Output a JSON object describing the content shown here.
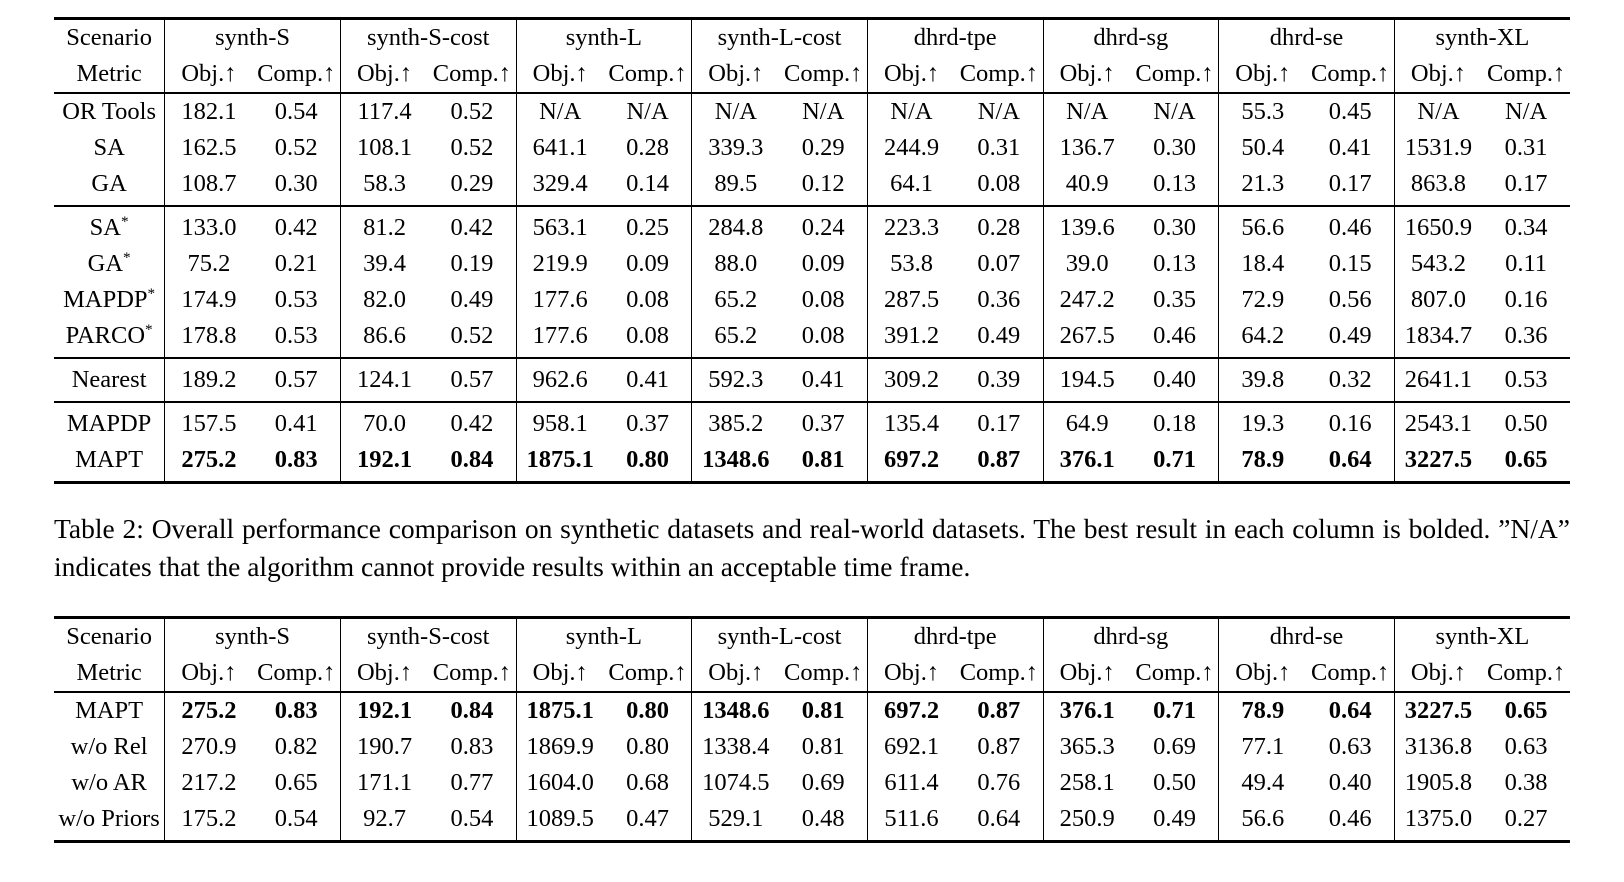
{
  "header": {
    "scenario_label": "Scenario",
    "metric_label": "Metric",
    "obj_label": "Obj.↑",
    "comp_label": "Comp.↑",
    "scenarios": [
      "synth-S",
      "synth-S-cost",
      "synth-L",
      "synth-L-cost",
      "dhrd-tpe",
      "dhrd-sg",
      "dhrd-se",
      "synth-XL"
    ]
  },
  "main_table": {
    "row_groups": [
      [
        {
          "label": "OR Tools",
          "sup": "",
          "bold": false,
          "values": [
            "182.1",
            "0.54",
            "117.4",
            "0.52",
            "N/A",
            "N/A",
            "N/A",
            "N/A",
            "N/A",
            "N/A",
            "N/A",
            "N/A",
            "55.3",
            "0.45",
            "N/A",
            "N/A"
          ]
        },
        {
          "label": "SA",
          "sup": "",
          "bold": false,
          "values": [
            "162.5",
            "0.52",
            "108.1",
            "0.52",
            "641.1",
            "0.28",
            "339.3",
            "0.29",
            "244.9",
            "0.31",
            "136.7",
            "0.30",
            "50.4",
            "0.41",
            "1531.9",
            "0.31"
          ]
        },
        {
          "label": "GA",
          "sup": "",
          "bold": false,
          "values": [
            "108.7",
            "0.30",
            "58.3",
            "0.29",
            "329.4",
            "0.14",
            "89.5",
            "0.12",
            "64.1",
            "0.08",
            "40.9",
            "0.13",
            "21.3",
            "0.17",
            "863.8",
            "0.17"
          ]
        }
      ],
      [
        {
          "label": "SA",
          "sup": "*",
          "bold": false,
          "values": [
            "133.0",
            "0.42",
            "81.2",
            "0.42",
            "563.1",
            "0.25",
            "284.8",
            "0.24",
            "223.3",
            "0.28",
            "139.6",
            "0.30",
            "56.6",
            "0.46",
            "1650.9",
            "0.34"
          ]
        },
        {
          "label": "GA",
          "sup": "*",
          "bold": false,
          "values": [
            "75.2",
            "0.21",
            "39.4",
            "0.19",
            "219.9",
            "0.09",
            "88.0",
            "0.09",
            "53.8",
            "0.07",
            "39.0",
            "0.13",
            "18.4",
            "0.15",
            "543.2",
            "0.11"
          ]
        },
        {
          "label": "MAPDP",
          "sup": "*",
          "bold": false,
          "values": [
            "174.9",
            "0.53",
            "82.0",
            "0.49",
            "177.6",
            "0.08",
            "65.2",
            "0.08",
            "287.5",
            "0.36",
            "247.2",
            "0.35",
            "72.9",
            "0.56",
            "807.0",
            "0.16"
          ]
        },
        {
          "label": "PARCO",
          "sup": "*",
          "bold": false,
          "values": [
            "178.8",
            "0.53",
            "86.6",
            "0.52",
            "177.6",
            "0.08",
            "65.2",
            "0.08",
            "391.2",
            "0.49",
            "267.5",
            "0.46",
            "64.2",
            "0.49",
            "1834.7",
            "0.36"
          ]
        }
      ],
      [
        {
          "label": "Nearest",
          "sup": "",
          "bold": false,
          "values": [
            "189.2",
            "0.57",
            "124.1",
            "0.57",
            "962.6",
            "0.41",
            "592.3",
            "0.41",
            "309.2",
            "0.39",
            "194.5",
            "0.40",
            "39.8",
            "0.32",
            "2641.1",
            "0.53"
          ]
        }
      ],
      [
        {
          "label": "MAPDP",
          "sup": "",
          "bold": false,
          "values": [
            "157.5",
            "0.41",
            "70.0",
            "0.42",
            "958.1",
            "0.37",
            "385.2",
            "0.37",
            "135.4",
            "0.17",
            "64.9",
            "0.18",
            "19.3",
            "0.16",
            "2543.1",
            "0.50"
          ]
        },
        {
          "label": "MAPT",
          "sup": "",
          "bold": true,
          "values": [
            "275.2",
            "0.83",
            "192.1",
            "0.84",
            "1875.1",
            "0.80",
            "1348.6",
            "0.81",
            "697.2",
            "0.87",
            "376.1",
            "0.71",
            "78.9",
            "0.64",
            "3227.5",
            "0.65"
          ]
        }
      ]
    ]
  },
  "caption": "Table 2: Overall performance comparison on synthetic datasets and real-world datasets. The best result in each column is bolded. ”N/A” indicates that the algorithm cannot provide results within an acceptable time frame.",
  "ablation_table": {
    "row_groups": [
      [
        {
          "label": "MAPT",
          "sup": "",
          "bold": true,
          "values": [
            "275.2",
            "0.83",
            "192.1",
            "0.84",
            "1875.1",
            "0.80",
            "1348.6",
            "0.81",
            "697.2",
            "0.87",
            "376.1",
            "0.71",
            "78.9",
            "0.64",
            "3227.5",
            "0.65"
          ]
        },
        {
          "label": "w/o Rel",
          "sup": "",
          "bold": false,
          "values": [
            "270.9",
            "0.82",
            "190.7",
            "0.83",
            "1869.9",
            "0.80",
            "1338.4",
            "0.81",
            "692.1",
            "0.87",
            "365.3",
            "0.69",
            "77.1",
            "0.63",
            "3136.8",
            "0.63"
          ]
        },
        {
          "label": "w/o AR",
          "sup": "",
          "bold": false,
          "values": [
            "217.2",
            "0.65",
            "171.1",
            "0.77",
            "1604.0",
            "0.68",
            "1074.5",
            "0.69",
            "611.4",
            "0.76",
            "258.1",
            "0.50",
            "49.4",
            "0.40",
            "1905.8",
            "0.38"
          ]
        },
        {
          "label": "w/o Priors",
          "sup": "",
          "bold": false,
          "values": [
            "175.2",
            "0.54",
            "92.7",
            "0.54",
            "1089.5",
            "0.47",
            "529.1",
            "0.48",
            "511.6",
            "0.64",
            "250.9",
            "0.49",
            "56.6",
            "0.46",
            "1375.0",
            "0.27"
          ]
        }
      ]
    ]
  }
}
